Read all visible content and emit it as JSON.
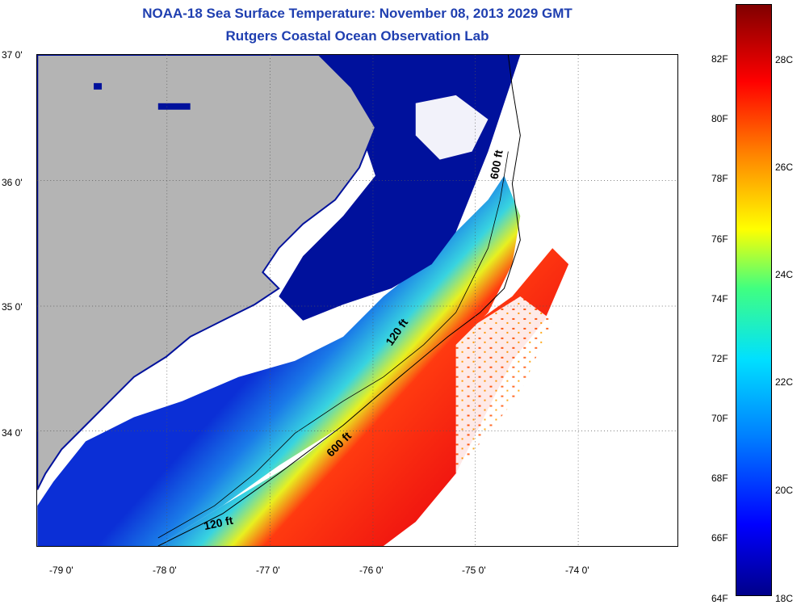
{
  "title": "NOAA-18 Sea Surface Temperature:  November 08, 2013 2029 GMT",
  "subtitle": "Rutgers Coastal Ocean Observation Lab",
  "latitude_labels": [
    "37 0'",
    "36 0'",
    "35 0'",
    "34 0'"
  ],
  "longitude_labels": [
    "-79 0'",
    "-78 0'",
    "-77 0'",
    "-76 0'",
    "-75 0'",
    "-74 0'"
  ],
  "contour_labels": [
    "600 ft",
    "120 ft",
    "600 ft",
    "120 ft"
  ],
  "colorbar": {
    "fahrenheit_labels": [
      "82F",
      "80F",
      "78F",
      "76F",
      "74F",
      "72F",
      "70F",
      "68F",
      "66F",
      "64F"
    ],
    "celsius_labels": [
      "28C",
      "26C",
      "24C",
      "22C",
      "20C",
      "18C"
    ],
    "colors": [
      "#00008a",
      "#0000ff",
      "#0080ff",
      "#00e0ff",
      "#40ff80",
      "#ffff00",
      "#ff8000",
      "#ff0000",
      "#800000"
    ]
  },
  "colors": {
    "land": "#b4b4b4",
    "coastal_water": "#00119c",
    "no_data": "#ffffff",
    "title": "#1f3fb0"
  }
}
